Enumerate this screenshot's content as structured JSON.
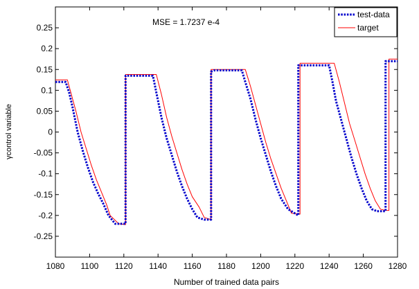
{
  "chart_data": {
    "type": "line",
    "annotation": "MSE = 1.7237 e-4",
    "xlabel": "Number of trained data pairs",
    "ylabel": "γcontrol variable",
    "xlim": [
      1080,
      1280
    ],
    "ylim": [
      -0.3,
      0.3
    ],
    "xticks": [
      1080,
      1100,
      1120,
      1140,
      1160,
      1180,
      1200,
      1220,
      1240,
      1260,
      1280
    ],
    "xtick_labels": [
      "1080",
      "1100",
      "1120",
      "1140",
      "1160",
      "1180",
      "1200",
      "1220",
      "1240",
      "1260",
      "1280"
    ],
    "yticks": [
      0.25,
      0.2,
      0.15,
      0.1,
      0.05,
      0,
      -0.05,
      -0.1,
      -0.15,
      -0.2,
      -0.25
    ],
    "ytick_labels": [
      "0.25",
      "0.2",
      "0.15",
      "0.1",
      "0.05",
      "0",
      "-0.05",
      "-0.1",
      "-0.15",
      "-0.2",
      "-0.25"
    ],
    "grid": false,
    "legend_position": "top-right",
    "series": [
      {
        "name": "test-data",
        "color": "#0000cc",
        "style": "dotted",
        "x": [
          1080,
          1086,
          1088,
          1090,
          1093,
          1096,
          1099,
          1102,
          1105,
          1108,
          1111,
          1115,
          1118,
          1121,
          1121,
          1122,
          1125,
          1130,
          1135,
          1137,
          1139,
          1142,
          1145,
          1148,
          1151,
          1154,
          1157,
          1160,
          1163,
          1167,
          1171,
          1171,
          1173,
          1176,
          1180,
          1185,
          1189,
          1191,
          1194,
          1197,
          1200,
          1203,
          1206,
          1209,
          1212,
          1216,
          1222,
          1222,
          1224,
          1227,
          1232,
          1237,
          1240,
          1242,
          1244,
          1247,
          1250,
          1253,
          1256,
          1259,
          1262,
          1265,
          1268,
          1273,
          1273,
          1275,
          1277,
          1280
        ],
        "y": [
          0.12,
          0.12,
          0.095,
          0.06,
          0.0,
          -0.045,
          -0.085,
          -0.12,
          -0.148,
          -0.172,
          -0.2,
          -0.22,
          -0.22,
          -0.22,
          0.135,
          0.135,
          0.135,
          0.135,
          0.135,
          0.135,
          0.095,
          0.035,
          -0.015,
          -0.055,
          -0.095,
          -0.13,
          -0.16,
          -0.185,
          -0.205,
          -0.21,
          -0.21,
          0.145,
          0.148,
          0.148,
          0.148,
          0.148,
          0.148,
          0.12,
          0.08,
          0.03,
          -0.015,
          -0.055,
          -0.095,
          -0.13,
          -0.16,
          -0.185,
          -0.2,
          0.16,
          0.16,
          0.16,
          0.16,
          0.16,
          0.16,
          0.12,
          0.075,
          0.03,
          -0.015,
          -0.06,
          -0.1,
          -0.135,
          -0.165,
          -0.185,
          -0.19,
          -0.19,
          0.17,
          0.17,
          0.17,
          0.17
        ]
      },
      {
        "name": "target",
        "color": "#ff0000",
        "style": "solid",
        "x": [
          1080,
          1087,
          1089,
          1092,
          1095,
          1098,
          1101,
          1104,
          1107,
          1110,
          1112,
          1117,
          1121,
          1121,
          1126,
          1131,
          1136,
          1139,
          1142,
          1145,
          1148,
          1151,
          1154,
          1157,
          1160,
          1164,
          1167,
          1171,
          1171,
          1176,
          1181,
          1186,
          1191,
          1194,
          1197,
          1200,
          1203,
          1206,
          1209,
          1212,
          1215,
          1218,
          1223,
          1223,
          1228,
          1233,
          1238,
          1243,
          1246,
          1249,
          1252,
          1255,
          1258,
          1261,
          1264,
          1267,
          1270,
          1273,
          1275,
          1275,
          1280
        ],
        "y": [
          0.125,
          0.125,
          0.095,
          0.05,
          0.0,
          -0.04,
          -0.08,
          -0.115,
          -0.145,
          -0.175,
          -0.2,
          -0.22,
          -0.222,
          0.138,
          0.138,
          0.138,
          0.138,
          0.138,
          0.09,
          0.035,
          -0.01,
          -0.05,
          -0.09,
          -0.125,
          -0.155,
          -0.18,
          -0.205,
          -0.21,
          0.15,
          0.15,
          0.15,
          0.15,
          0.15,
          0.11,
          0.065,
          0.02,
          -0.025,
          -0.065,
          -0.1,
          -0.135,
          -0.165,
          -0.195,
          -0.197,
          0.165,
          0.165,
          0.165,
          0.165,
          0.165,
          0.12,
          0.07,
          0.02,
          -0.02,
          -0.06,
          -0.1,
          -0.135,
          -0.165,
          -0.185,
          -0.188,
          -0.188,
          0.175,
          0.175
        ]
      }
    ]
  }
}
